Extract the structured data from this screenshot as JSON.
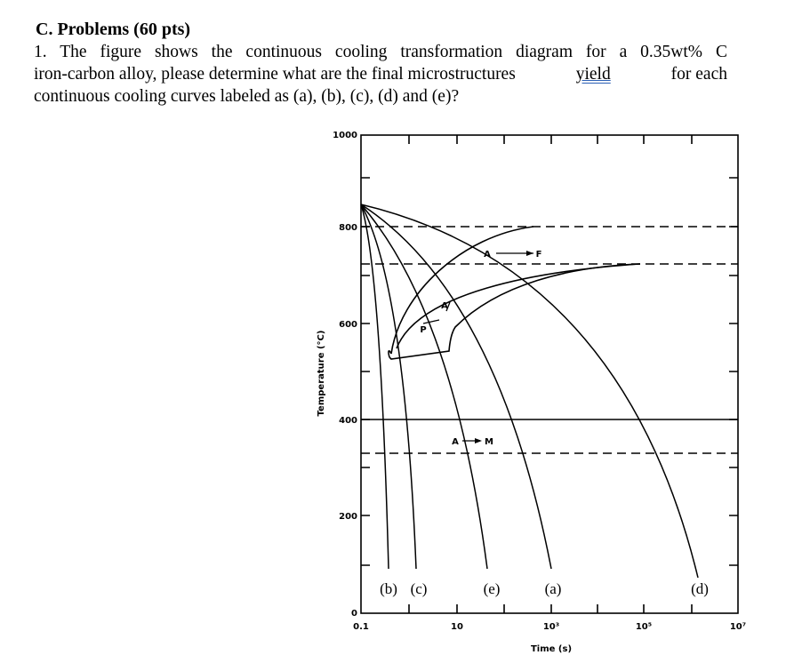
{
  "header": {
    "title": "C. Problems (60 pts)"
  },
  "question": {
    "line_0": "1. The figure shows the continuous cooling transformation diagram for a 0.35wt% C",
    "line_1": [
      "iron-carbon alloy, please determine what are the final microstructures",
      "yield",
      "for each"
    ],
    "line_2": "continuous cooling curves labeled as (a), (b), (c), (d) and (e)?"
  },
  "figure": {
    "y_axis_label": "Temperature (°C)",
    "x_axis_label": "Time (s)",
    "y_tick_labels": [
      "1000",
      "800",
      "600",
      "400",
      "200",
      "0"
    ],
    "x_tick_labels": [
      "0.1",
      "10",
      "10³",
      "10⁵",
      "10⁷"
    ],
    "region_labels": [
      "A",
      "F",
      "P",
      "A",
      "A",
      "M"
    ],
    "curve_labels": [
      "(b)",
      "(c)",
      "(e)",
      "(a)",
      "(d)"
    ]
  }
}
